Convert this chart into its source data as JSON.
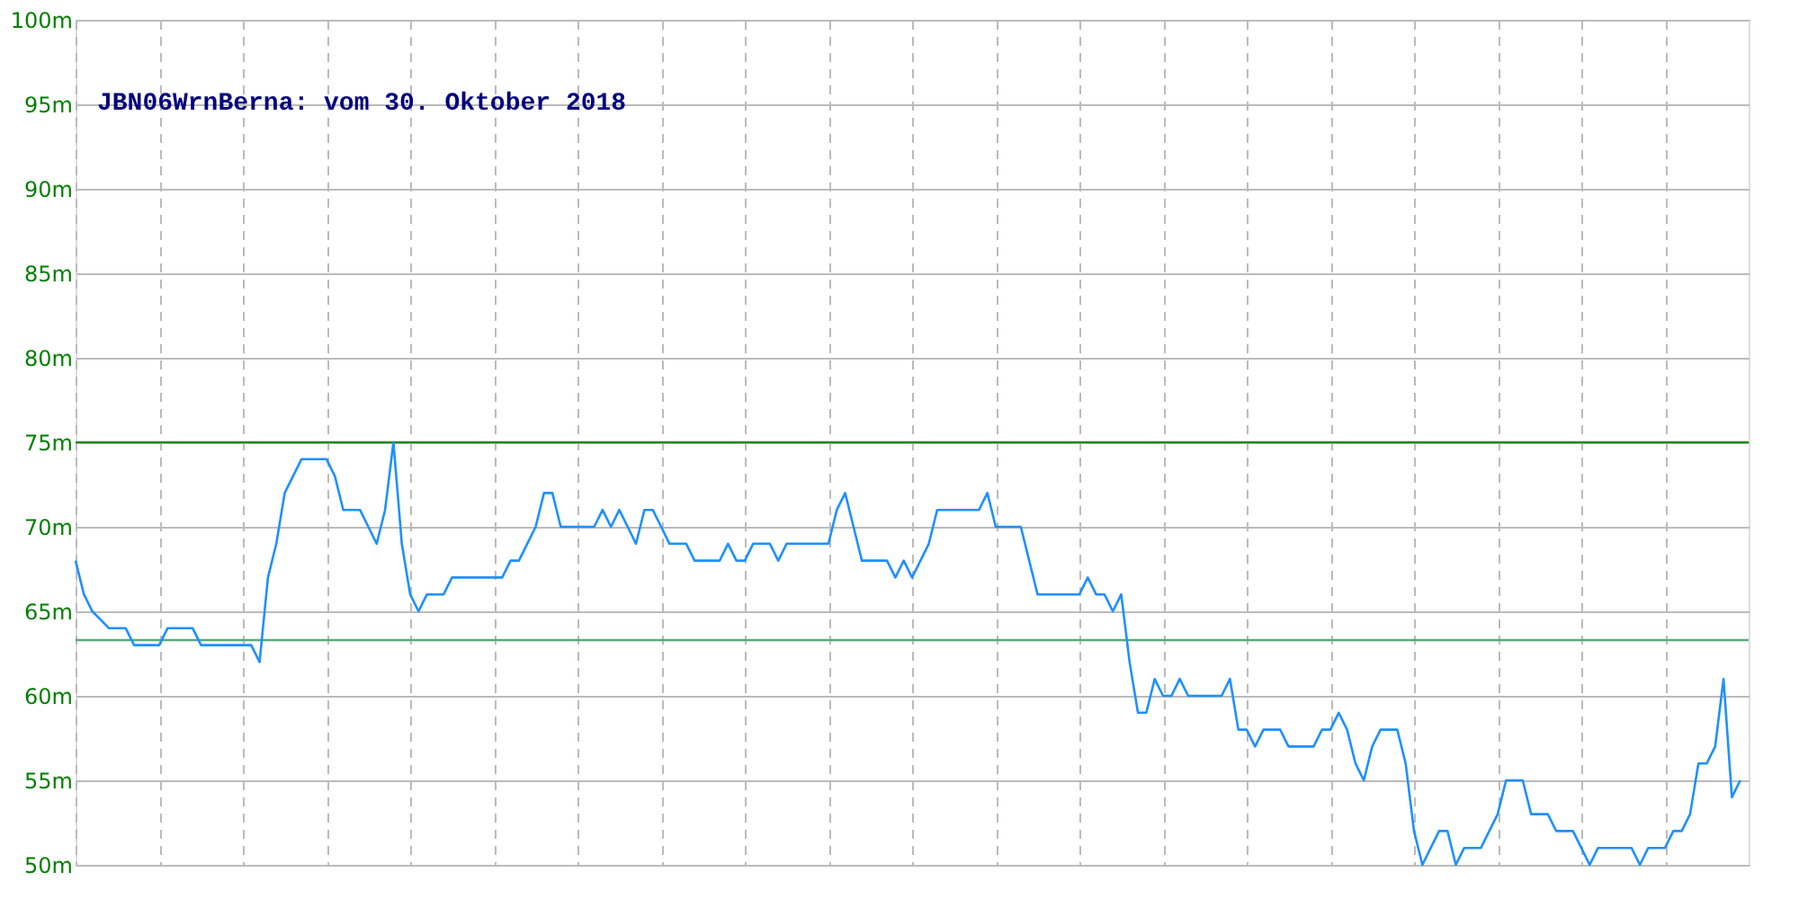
{
  "chart_data": {
    "type": "line",
    "title": "JBN06WrnBerna: vom 30. Oktober 2018",
    "categories": [
      null,
      null,
      null,
      null,
      null,
      null,
      null,
      null,
      null,
      null,
      null,
      null,
      null,
      null,
      null,
      null,
      null,
      null,
      null,
      null,
      null,
      null,
      null,
      null,
      null,
      null,
      null,
      null,
      null,
      null,
      null,
      null,
      null,
      null,
      null,
      null,
      null,
      null,
      null,
      null,
      null,
      null,
      null,
      null,
      null,
      null,
      null,
      null,
      null,
      null,
      null,
      null,
      null,
      null,
      null,
      null,
      null,
      null,
      null,
      null,
      null,
      null,
      null,
      null,
      null,
      null,
      null,
      null,
      null,
      null,
      null,
      null,
      null,
      null,
      null,
      null,
      null,
      null,
      null,
      null,
      null,
      null,
      null,
      null,
      null,
      null,
      null,
      null,
      null,
      null,
      null,
      null,
      null,
      null,
      null,
      null,
      null,
      null,
      null,
      null,
      null,
      null,
      null,
      null,
      null,
      null,
      null,
      null,
      null,
      null,
      null,
      null,
      null,
      null,
      null,
      null,
      null,
      null,
      null,
      null,
      null,
      null,
      null,
      null,
      null,
      null,
      null,
      null,
      null,
      null,
      null,
      null,
      null,
      null,
      null,
      null,
      null,
      null,
      null,
      null,
      null,
      null,
      null,
      null,
      null,
      null,
      null,
      null,
      null,
      null,
      null,
      null,
      null,
      null,
      null,
      null,
      null,
      null,
      null,
      null,
      null,
      null,
      null,
      null,
      null,
      null,
      null,
      null,
      null,
      null,
      null,
      null,
      null,
      null,
      null,
      null,
      null,
      null,
      null,
      null,
      null,
      null,
      null,
      null,
      null,
      null,
      null,
      null,
      null,
      null,
      null,
      null,
      null,
      null,
      null,
      null,
      null,
      null,
      null,
      null
    ],
    "series": [
      {
        "color": "#1e90ff",
        "values": [
          68,
          66,
          65,
          64.5,
          64,
          64,
          64,
          63,
          63,
          63,
          63,
          64,
          64,
          64,
          64,
          63,
          63,
          63,
          63,
          63,
          63,
          63,
          62,
          67,
          69,
          72,
          73,
          74,
          74,
          74,
          74,
          73,
          71,
          71,
          71,
          70,
          69,
          71,
          75,
          69,
          66,
          65,
          66,
          66,
          66,
          67,
          67,
          67,
          67,
          67,
          67,
          67,
          68,
          68,
          69,
          70,
          72,
          72,
          70,
          70,
          70,
          70,
          70,
          71,
          70,
          71,
          70,
          69,
          71,
          71,
          70,
          69,
          69,
          69,
          68,
          68,
          68,
          68,
          69,
          68,
          68,
          69,
          69,
          69,
          68,
          69,
          69,
          69,
          69,
          69,
          69,
          71,
          72,
          70,
          68,
          68,
          68,
          68,
          67,
          68,
          67,
          68,
          69,
          71,
          71,
          71,
          71,
          71,
          71,
          72,
          70,
          70,
          70,
          70,
          68,
          66,
          66,
          66,
          66,
          66,
          66,
          67,
          66,
          66,
          65,
          66,
          62,
          59,
          59,
          61,
          60,
          60,
          61,
          60,
          60,
          60,
          60,
          60,
          61,
          58,
          58,
          57,
          58,
          58,
          58,
          57,
          57,
          57,
          57,
          58,
          58,
          59,
          58,
          56,
          55,
          57,
          58,
          58,
          58,
          56,
          52,
          50,
          51,
          52,
          52,
          50,
          51,
          51,
          51,
          52,
          53,
          55,
          55,
          55,
          53,
          53,
          53,
          52,
          52,
          52,
          51,
          50,
          51,
          51,
          51,
          51,
          51,
          50,
          51,
          51,
          51,
          52,
          52,
          53,
          56,
          56,
          57,
          61,
          54,
          55
        ]
      }
    ],
    "ylim": [
      50,
      100
    ],
    "yticks": [
      {
        "value": 50,
        "label": "50m"
      },
      {
        "value": 55,
        "label": "55m"
      },
      {
        "value": 60,
        "label": "60m"
      },
      {
        "value": 65,
        "label": "65m"
      },
      {
        "value": 70,
        "label": "70m"
      },
      {
        "value": 75,
        "label": "75m"
      },
      {
        "value": 80,
        "label": "80m"
      },
      {
        "value": 85,
        "label": "85m"
      },
      {
        "value": 90,
        "label": "90m"
      },
      {
        "value": 95,
        "label": "95m"
      },
      {
        "value": 100,
        "label": "100m"
      }
    ],
    "grid": true,
    "ref_lines": [
      {
        "axis": "y",
        "value": 75,
        "color": "#228b22"
      },
      {
        "axis": "y",
        "value": 63.3,
        "color": "#5aaa7a"
      }
    ]
  }
}
